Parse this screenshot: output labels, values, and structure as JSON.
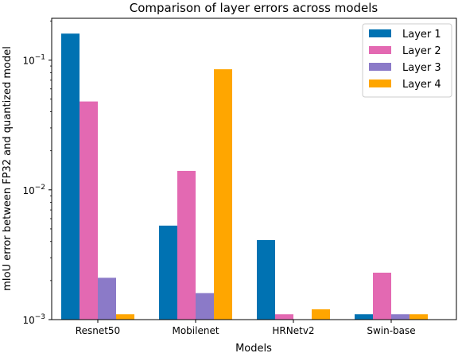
{
  "chart_data": {
    "type": "bar",
    "title": "Comparison of layer errors across models",
    "xlabel": "Models",
    "ylabel": "mIoU error between FP32 and quantized model",
    "yscale": "log",
    "ylim": [
      0.001,
      0.21
    ],
    "categories": [
      "Resnet50",
      "Mobilenet",
      "HRNetv2",
      "Swin-base"
    ],
    "series": [
      {
        "name": "Layer 1",
        "color": "#0072b2",
        "values": [
          0.16,
          0.0053,
          0.0041,
          0.0011
        ]
      },
      {
        "name": "Layer 2",
        "color": "#e369b2",
        "values": [
          0.048,
          0.014,
          0.0011,
          0.0023
        ]
      },
      {
        "name": "Layer 3",
        "color": "#8b7ac8",
        "values": [
          0.0021,
          0.0016,
          0.001,
          0.0011
        ]
      },
      {
        "name": "Layer 4",
        "color": "#ffa600",
        "values": [
          0.0011,
          0.085,
          0.0012,
          0.0011
        ]
      }
    ],
    "yticks": [
      {
        "value": 0.001,
        "base": "10",
        "exp": "−3"
      },
      {
        "value": 0.01,
        "base": "10",
        "exp": "−2"
      },
      {
        "value": 0.1,
        "base": "10",
        "exp": "−1"
      }
    ],
    "legend_position": "top-right",
    "grid": false
  }
}
